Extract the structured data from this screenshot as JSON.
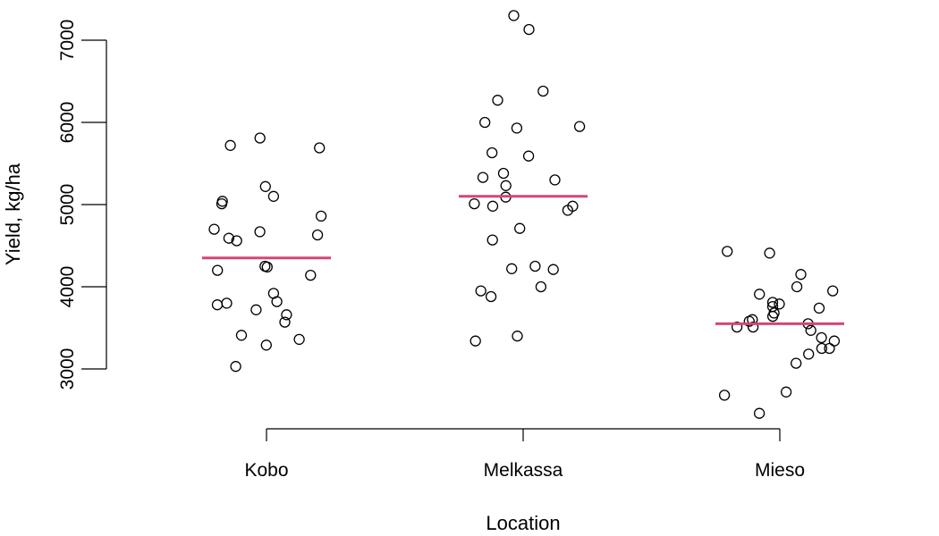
{
  "chart_data": {
    "type": "scatter",
    "title": "",
    "xlabel": "Location",
    "ylabel": "Yield, kg/ha",
    "categories": [
      "Kobo",
      "Melkassa",
      "Mieso"
    ],
    "yticks": [
      3000,
      4000,
      5000,
      6000,
      7000
    ],
    "ylim": [
      2450,
      7300
    ],
    "grid": false,
    "mean_color": "#d6457a",
    "point_color": "#000000",
    "means": [
      4350,
      5100,
      3550
    ],
    "series": [
      {
        "category": "Kobo",
        "values": [
          5220,
          5100,
          5010,
          4560,
          4670,
          4240,
          4200,
          4140,
          3820,
          3720,
          3410,
          3360,
          3570,
          3780,
          3290,
          3030,
          3660,
          3800,
          3920,
          4250,
          4590,
          4700,
          4630,
          4860,
          5040,
          5810,
          5690,
          5720
        ]
      },
      {
        "category": "Melkassa",
        "values": [
          7300,
          7130,
          6380,
          6270,
          6000,
          5950,
          5930,
          5630,
          5590,
          5380,
          5330,
          5300,
          5230,
          5090,
          5010,
          4980,
          4980,
          4930,
          4710,
          4570,
          4250,
          4220,
          4210,
          4000,
          3950,
          3880,
          3400,
          3340
        ]
      },
      {
        "category": "Mieso",
        "values": [
          4430,
          4410,
          4150,
          4000,
          3950,
          3910,
          3810,
          3790,
          3760,
          3740,
          3680,
          3640,
          3600,
          3580,
          3550,
          3510,
          3510,
          3470,
          3380,
          3340,
          3250,
          3250,
          3180,
          3070,
          2720,
          2680,
          2460
        ]
      }
    ]
  }
}
